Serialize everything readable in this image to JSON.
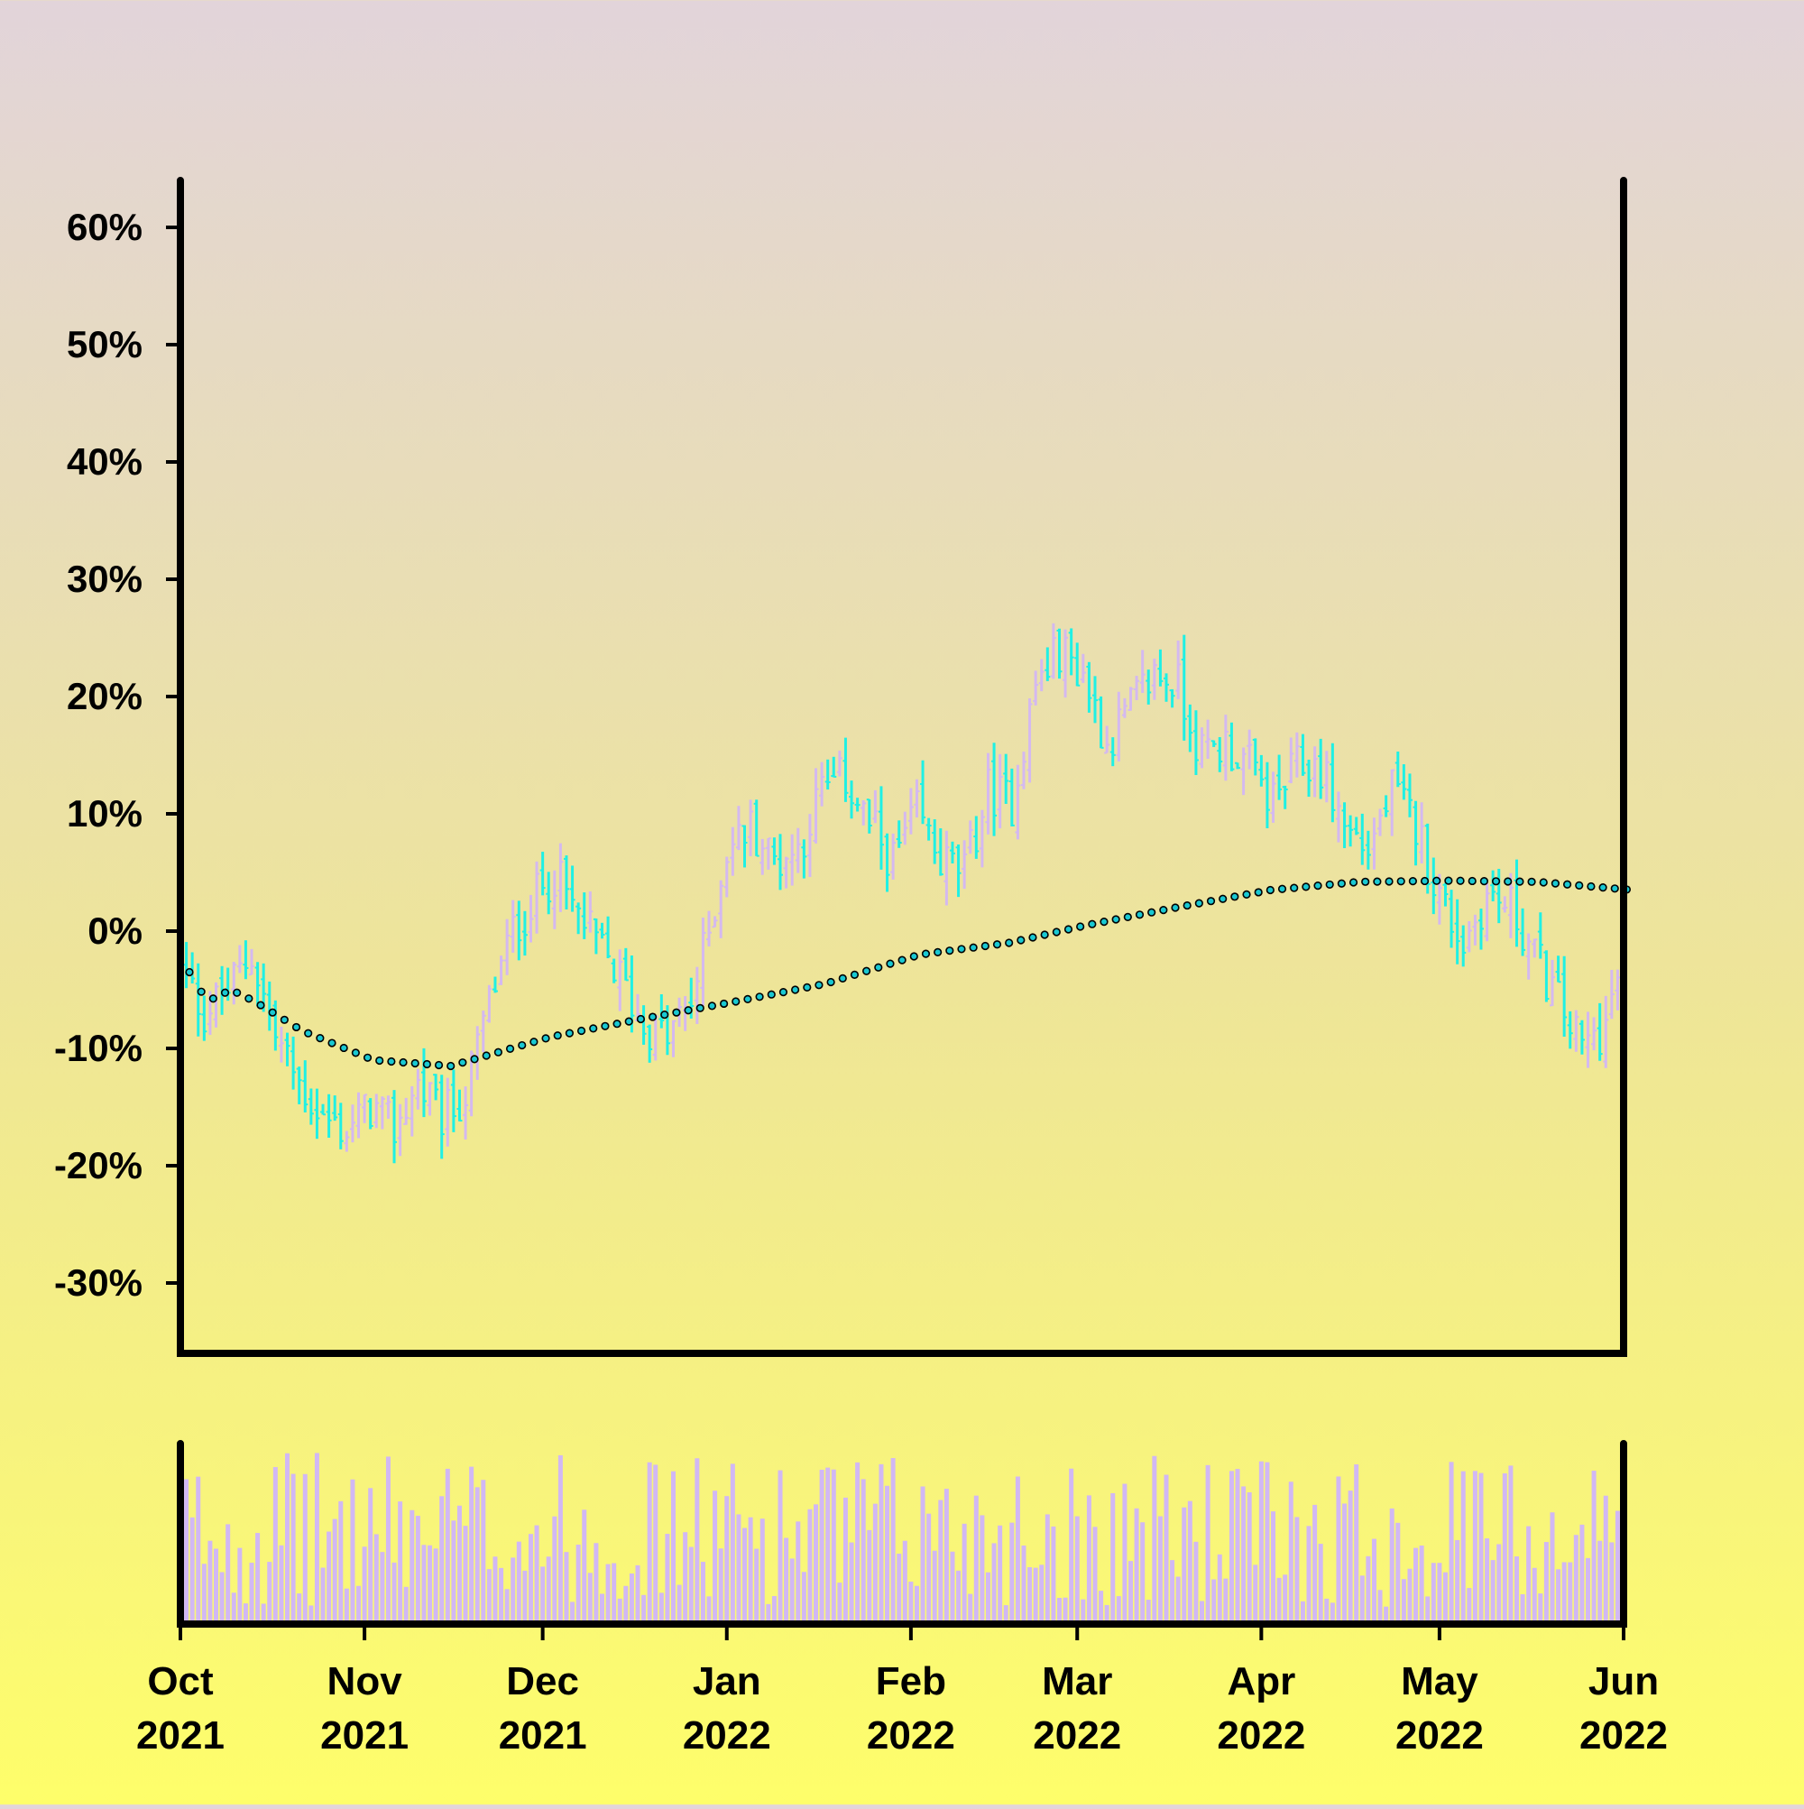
{
  "chart_data": {
    "type": "ohlc",
    "subtype": "percent-change OHLC bars with moving average and volume panel",
    "title": "",
    "xlabel": "",
    "ylabel": "",
    "x_range": [
      "2021-10-01",
      "2022-06-01"
    ],
    "y_range_percent": [
      -36,
      64
    ],
    "y_ticks": [
      "60%",
      "50%",
      "40%",
      "30%",
      "20%",
      "10%",
      "0%",
      "-10%",
      "-20%",
      "-30%"
    ],
    "y_tick_values": [
      60,
      50,
      40,
      30,
      20,
      10,
      0,
      -10,
      -20,
      -30
    ],
    "x_ticks": [
      {
        "date": "2021-10-01",
        "month": "Oct",
        "year": "2021"
      },
      {
        "date": "2021-11-01",
        "month": "Nov",
        "year": "2021"
      },
      {
        "date": "2021-12-01",
        "month": "Dec",
        "year": "2021"
      },
      {
        "date": "2022-01-01",
        "month": "Jan",
        "year": "2022"
      },
      {
        "date": "2022-02-01",
        "month": "Feb",
        "year": "2022"
      },
      {
        "date": "2022-03-01",
        "month": "Mar",
        "year": "2022"
      },
      {
        "date": "2022-04-01",
        "month": "Apr",
        "year": "2022"
      },
      {
        "date": "2022-05-01",
        "month": "May",
        "year": "2022"
      },
      {
        "date": "2022-06-01",
        "month": "Jun",
        "year": "2022"
      }
    ],
    "close_anchors_percent": [
      [
        "2021-10-01",
        -3
      ],
      [
        "2021-10-05",
        -7
      ],
      [
        "2021-10-09",
        -5
      ],
      [
        "2021-10-13",
        -2
      ],
      [
        "2021-10-17",
        -9
      ],
      [
        "2021-10-21",
        -13
      ],
      [
        "2021-10-25",
        -16
      ],
      [
        "2021-10-29",
        -17
      ],
      [
        "2021-11-02",
        -15
      ],
      [
        "2021-11-06",
        -17
      ],
      [
        "2021-11-10",
        -13
      ],
      [
        "2021-11-14",
        -16
      ],
      [
        "2021-11-18",
        -14
      ],
      [
        "2021-11-22",
        -6
      ],
      [
        "2021-11-26",
        0
      ],
      [
        "2021-11-30",
        3
      ],
      [
        "2021-12-03",
        5
      ],
      [
        "2021-12-06",
        2
      ],
      [
        "2021-12-10",
        -1
      ],
      [
        "2021-12-14",
        -4
      ],
      [
        "2021-12-18",
        -8
      ],
      [
        "2021-12-22",
        -9
      ],
      [
        "2021-12-26",
        -6
      ],
      [
        "2021-12-29",
        0
      ],
      [
        "2022-01-01",
        7
      ],
      [
        "2022-01-05",
        9
      ],
      [
        "2022-01-09",
        6
      ],
      [
        "2022-01-13",
        7
      ],
      [
        "2022-01-17",
        12
      ],
      [
        "2022-01-21",
        13
      ],
      [
        "2022-01-25",
        9
      ],
      [
        "2022-01-29",
        6
      ],
      [
        "2022-02-02",
        10
      ],
      [
        "2022-02-06",
        6
      ],
      [
        "2022-02-10",
        5
      ],
      [
        "2022-02-14",
        12
      ],
      [
        "2022-02-18",
        11
      ],
      [
        "2022-02-22",
        21
      ],
      [
        "2022-02-26",
        24
      ],
      [
        "2022-03-02",
        22
      ],
      [
        "2022-03-06",
        16
      ],
      [
        "2022-03-10",
        19
      ],
      [
        "2022-03-14",
        22
      ],
      [
        "2022-03-18",
        21
      ],
      [
        "2022-03-22",
        15
      ],
      [
        "2022-03-26",
        16
      ],
      [
        "2022-03-30",
        14
      ],
      [
        "2022-04-03",
        11
      ],
      [
        "2022-04-07",
        14
      ],
      [
        "2022-04-11",
        14
      ],
      [
        "2022-04-15",
        9
      ],
      [
        "2022-04-19",
        7
      ],
      [
        "2022-04-23",
        12
      ],
      [
        "2022-04-27",
        9
      ],
      [
        "2022-05-01",
        3
      ],
      [
        "2022-05-05",
        -1
      ],
      [
        "2022-05-09",
        3
      ],
      [
        "2022-05-13",
        2
      ],
      [
        "2022-05-17",
        -2
      ],
      [
        "2022-05-21",
        -6
      ],
      [
        "2022-05-25",
        -10
      ],
      [
        "2022-05-29",
        -8
      ],
      [
        "2022-06-01",
        -2
      ]
    ],
    "moving_average_percent": [
      [
        "2021-10-01",
        -3.5
      ],
      [
        "2021-10-04",
        -6
      ],
      [
        "2021-10-08",
        -5
      ],
      [
        "2021-10-12",
        -6
      ],
      [
        "2021-10-20",
        -8.5
      ],
      [
        "2021-11-01",
        -11
      ],
      [
        "2021-11-14",
        -11.5
      ],
      [
        "2021-12-01",
        -9
      ],
      [
        "2021-12-16",
        -7.5
      ],
      [
        "2022-01-01",
        -6
      ],
      [
        "2022-01-16",
        -4.5
      ],
      [
        "2022-02-01",
        -2
      ],
      [
        "2022-02-16",
        -1
      ],
      [
        "2022-03-01",
        0.5
      ],
      [
        "2022-03-16",
        2
      ],
      [
        "2022-04-01",
        3.5
      ],
      [
        "2022-04-16",
        4.2
      ],
      [
        "2022-05-01",
        4.3
      ],
      [
        "2022-05-16",
        4.2
      ],
      [
        "2022-06-01",
        3.5
      ]
    ],
    "volume": {
      "unit": "relative",
      "typical_range": [
        0.1,
        1.0
      ]
    },
    "colors": {
      "up_bar": "#d4b9f0",
      "down_bar": "#1ff0e4",
      "ma_dot_fill": "#19c8d2",
      "ma_dot_stroke": "#000000",
      "volume_bar": "#d1b8f4",
      "frame": "#000000",
      "background_top": "#e2d4da",
      "background_bottom": "#fefe6a"
    },
    "grid": false,
    "legend": "none"
  }
}
